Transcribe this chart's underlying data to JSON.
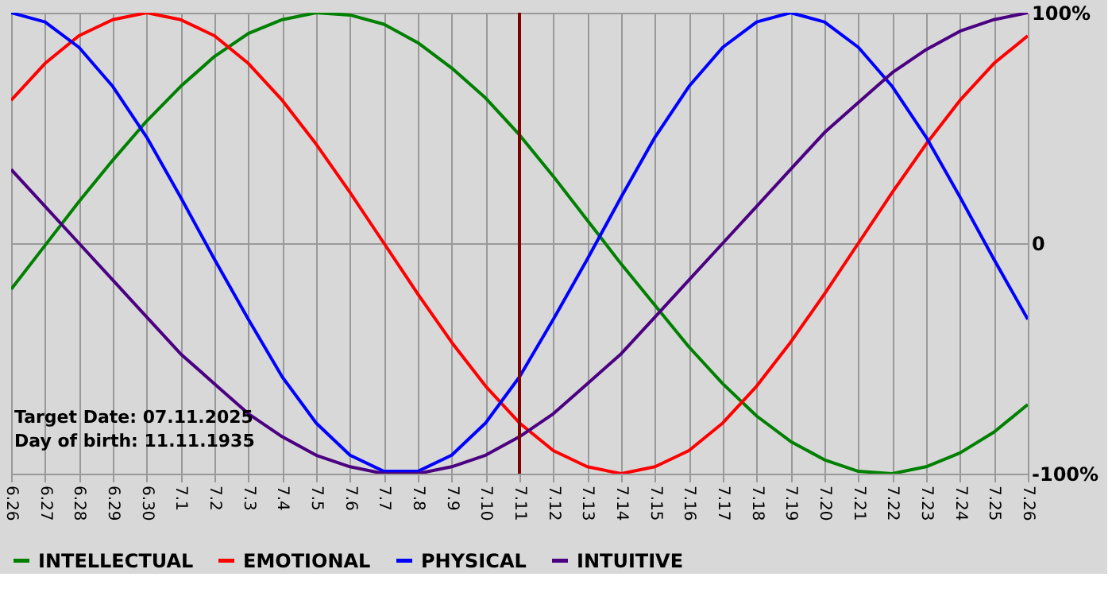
{
  "chart_data": {
    "type": "line",
    "categories": [
      "6.26",
      "6.27",
      "6.28",
      "6.29",
      "6.30",
      "7.1",
      "7.2",
      "7.3",
      "7.4",
      "7.5",
      "7.6",
      "7.7",
      "7.8",
      "7.9",
      "7.10",
      "7.11",
      "7.12",
      "7.13",
      "7.14",
      "7.15",
      "7.16",
      "7.17",
      "7.18",
      "7.19",
      "7.20",
      "7.21",
      "7.22",
      "7.23",
      "7.24",
      "7.25",
      "7.26"
    ],
    "ylim": [
      -100,
      100
    ],
    "yticks": [
      {
        "value": -100,
        "label": "-100%"
      },
      0,
      {
        "value": 100,
        "label": "100%"
      }
    ],
    "series": [
      {
        "name": "INTELLECTUAL",
        "color": "#008000",
        "values": [
          -20,
          -1,
          18,
          36,
          53,
          68,
          81,
          91,
          97,
          100,
          99,
          95,
          87,
          76,
          63,
          47,
          29,
          10,
          -9,
          -27,
          -45,
          -61,
          -75,
          -86,
          -94,
          -99,
          -100,
          -97,
          -91,
          -82,
          -70
        ]
      },
      {
        "name": "EMOTIONAL",
        "color": "#ff0000",
        "values": [
          62,
          78,
          90,
          97,
          100,
          97,
          90,
          78,
          62,
          43,
          22,
          0,
          -22,
          -43,
          -62,
          -78,
          -90,
          -97,
          -100,
          -97,
          -90,
          -78,
          -62,
          -43,
          -22,
          0,
          22,
          43,
          62,
          78,
          90
        ]
      },
      {
        "name": "PHYSICAL",
        "color": "#0000ff",
        "values": [
          100,
          96,
          85,
          68,
          46,
          20,
          -7,
          -33,
          -58,
          -78,
          -92,
          -99,
          -99,
          -92,
          -78,
          -58,
          -33,
          -7,
          20,
          46,
          68,
          85,
          96,
          100,
          96,
          85,
          68,
          46,
          20,
          -7,
          -33
        ]
      },
      {
        "name": "INTUITIVE",
        "color": "#4b0082",
        "values": [
          32,
          16,
          0,
          -16,
          -32,
          -48,
          -61,
          -74,
          -84,
          -92,
          -97,
          -100,
          -100,
          -97,
          -92,
          -84,
          -74,
          -61,
          -48,
          -32,
          -16,
          0,
          16,
          32,
          48,
          61,
          74,
          84,
          92,
          97,
          100
        ]
      }
    ],
    "ref_lines": [
      {
        "axis": "x",
        "value": "7.11",
        "color": "#800000"
      }
    ],
    "annotations": [
      "Target Date: 07.11.2025",
      "Day of birth: 11.11.1935"
    ],
    "grid": true,
    "legend": "bottom",
    "marker": "none",
    "line_style": "solid"
  }
}
